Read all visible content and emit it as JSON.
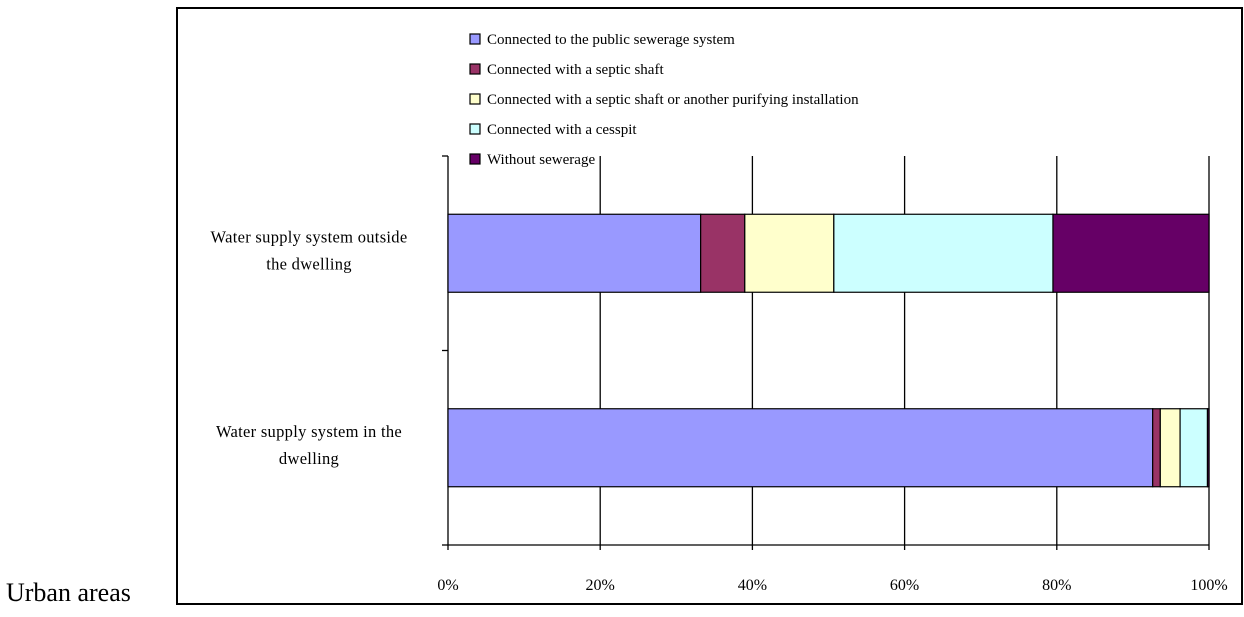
{
  "page": {
    "side_label": "Urban areas"
  },
  "chart_data": {
    "type": "bar",
    "orientation": "horizontal",
    "stacked": "percent",
    "title": "",
    "xlabel": "",
    "ylabel": "",
    "xlim": [
      0,
      100
    ],
    "x_ticks": [
      "0%",
      "20%",
      "40%",
      "60%",
      "80%",
      "100%"
    ],
    "grid": "vertical",
    "legend_position": "top",
    "categories": [
      "Water supply system outside the dwelling",
      "Water supply system in the dwelling"
    ],
    "category_lines": [
      [
        "Water supply system outside",
        "the dwelling"
      ],
      [
        "Water supply system in the",
        "dwelling"
      ]
    ],
    "series": [
      {
        "name": "Connected to the public sewerage system",
        "color": "#9999FF",
        "values": [
          33.2,
          92.6
        ]
      },
      {
        "name": "Connected with a septic shaft",
        "color": "#993366",
        "values": [
          5.8,
          1.0
        ]
      },
      {
        "name": "Connected with a septic shaft or another purifying installation",
        "color": "#FFFFCC",
        "values": [
          11.7,
          2.6
        ]
      },
      {
        "name": "Connected with a cesspit",
        "color": "#CCFFFF",
        "values": [
          28.8,
          3.6
        ]
      },
      {
        "name": "Without sewerage",
        "color": "#660066",
        "values": [
          20.5,
          0.2
        ]
      }
    ]
  }
}
